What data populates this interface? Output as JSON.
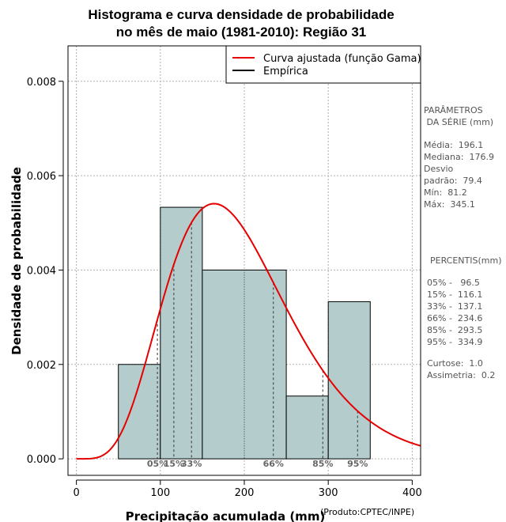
{
  "chart_data": {
    "type": "histogram",
    "title_line1": "Histograma e curva densidade de probabilidade",
    "title_line2": "no mês de maio (1981-2010): Região 31",
    "xlabel": "Precipitação acumulada (mm)",
    "ylabel": "Densidade de probabilidade",
    "credit": "(Produto:CPTEC/INPE)",
    "xlim": [
      -10,
      410
    ],
    "ylim": [
      -0.00035,
      0.00875
    ],
    "x_ticks": [
      0,
      100,
      200,
      300,
      400
    ],
    "x_tick_labels": [
      "0",
      "100",
      "200",
      "300",
      "400"
    ],
    "y_ticks": [
      0,
      0.002,
      0.004,
      0.006,
      0.008
    ],
    "y_tick_labels": [
      "0.000",
      "0.002",
      "0.004",
      "0.006",
      "0.008"
    ],
    "bins": [
      {
        "start": 50,
        "end": 100,
        "density": 0.002
      },
      {
        "start": 100,
        "end": 150,
        "density": 0.00533
      },
      {
        "start": 150,
        "end": 250,
        "density": 0.004
      },
      {
        "start": 250,
        "end": 300,
        "density": 0.00133
      },
      {
        "start": 300,
        "end": 350,
        "density": 0.00333
      }
    ],
    "gamma_fit": {
      "mean": 196.1,
      "sd": 79.4
    },
    "percentiles": [
      {
        "label": "05%",
        "value": 96.5
      },
      {
        "label": "15%",
        "value": 116.1
      },
      {
        "label": "33%",
        "value": 137.1
      },
      {
        "label": "66%",
        "value": 234.6
      },
      {
        "label": "85%",
        "value": 293.5
      },
      {
        "label": "95%",
        "value": 334.9
      }
    ],
    "legend": [
      {
        "label": "Curva ajustada (função Gama)",
        "color": "#e60000"
      },
      {
        "label": "Empírica",
        "color": "#000000"
      }
    ],
    "legend_position": "top-right",
    "grid": true,
    "colors": {
      "bar_fill": "#b4cccc",
      "curve": "#e60000",
      "grid": "#b0b0b0",
      "percentile_label": "#666666"
    }
  },
  "side_panel": {
    "params_header": "PARÂMETROS\n DA SÉRIE (mm)",
    "params": "Média:  196.1\nMediana:  176.9\nDesvio\npadrão:  79.4\nMín:  81.2\nMáx:  345.1",
    "percentis_header": "PERCENTIS(mm)",
    "percentis": "05% -   96.5\n15% -  116.1\n33% -  137.1\n66% -  234.6\n85% -  293.5\n95% -  334.9",
    "stats": "Curtose:  1.0\nAssimetria:  0.2"
  }
}
